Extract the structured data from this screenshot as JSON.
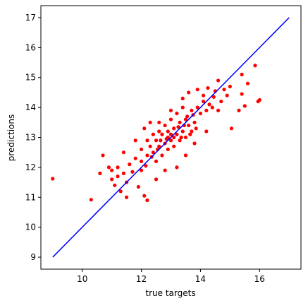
{
  "chart_data": {
    "type": "scatter",
    "xlabel": "true targets",
    "ylabel": "predictions",
    "xlim": [
      8.6,
      17.4
    ],
    "ylim": [
      8.6,
      17.4
    ],
    "xticks": [
      10,
      12,
      14,
      16
    ],
    "yticks": [
      9,
      10,
      11,
      12,
      13,
      14,
      15,
      16,
      17
    ],
    "series": [
      {
        "type": "scatter",
        "color": "#ff0000",
        "x": [
          9.0,
          10.3,
          16.0,
          15.95,
          15.85,
          15.4,
          15.6,
          15.5,
          15.4,
          15.05,
          14.6,
          14.5,
          14.8,
          10.7,
          10.6,
          11.0,
          11.1,
          11.3,
          11.5,
          12.1,
          12.2,
          11.9,
          10.9,
          11.2,
          11.4,
          11.8,
          12.1,
          12.3,
          12.6,
          13.0,
          13.4,
          13.6,
          13.9,
          14.1,
          14.3,
          14.6,
          14.2,
          13.8,
          13.5,
          13.2,
          12.8,
          12.5,
          11.5,
          11.7,
          12.0,
          12.0,
          11.8,
          12.3,
          12.5,
          12.7,
          12.9,
          13.1,
          13.3,
          13.5,
          13.7,
          13.9,
          14.1,
          12.2,
          12.4,
          12.6,
          12.8,
          13.0,
          13.2,
          13.4,
          13.6,
          13.8,
          14.0,
          14.2,
          14.4,
          12.5,
          12.7,
          12.9,
          13.1,
          13.3,
          13.5,
          13.7,
          12.0,
          12.2,
          12.4,
          12.6,
          12.8,
          13.0,
          13.2,
          13.4,
          11.6,
          11.4,
          11.2,
          11.0,
          12.9,
          13.0,
          13.1,
          12.85,
          13.25,
          13.35,
          13.45,
          12.65,
          12.55,
          12.35,
          12.15,
          13.55,
          13.65,
          13.75,
          13.85,
          14.45,
          14.7,
          14.9,
          15.0,
          14.25,
          15.3
        ],
        "values": [
          11.62,
          10.92,
          14.25,
          14.2,
          15.4,
          15.1,
          14.8,
          14.05,
          14.45,
          13.3,
          14.9,
          14.55,
          14.6,
          12.4,
          11.8,
          11.6,
          11.4,
          11.2,
          11.0,
          11.05,
          10.9,
          11.35,
          12.0,
          12.0,
          12.5,
          12.9,
          13.3,
          13.5,
          13.5,
          13.9,
          14.3,
          14.5,
          14.6,
          14.4,
          14.1,
          13.9,
          13.2,
          12.8,
          12.4,
          12.0,
          11.9,
          11.6,
          11.5,
          11.85,
          11.9,
          12.2,
          12.3,
          12.7,
          12.9,
          13.1,
          13.2,
          13.3,
          13.5,
          13.6,
          13.9,
          14.0,
          14.2,
          12.4,
          12.5,
          12.7,
          12.8,
          12.9,
          13.1,
          13.2,
          13.4,
          13.5,
          13.8,
          13.9,
          14.0,
          12.2,
          12.4,
          12.6,
          12.7,
          12.9,
          13.0,
          13.2,
          12.6,
          12.9,
          13.1,
          13.2,
          13.4,
          13.6,
          13.8,
          14.0,
          12.1,
          11.8,
          11.7,
          11.9,
          13.0,
          13.1,
          13.0,
          12.95,
          13.35,
          13.0,
          13.4,
          12.9,
          12.6,
          12.35,
          12.05,
          13.7,
          13.1,
          13.75,
          13.3,
          14.35,
          14.2,
          14.4,
          14.7,
          14.65,
          13.9
        ]
      },
      {
        "type": "line",
        "color": "#0000ff",
        "x": [
          9,
          17
        ],
        "values": [
          9,
          17
        ]
      }
    ]
  }
}
